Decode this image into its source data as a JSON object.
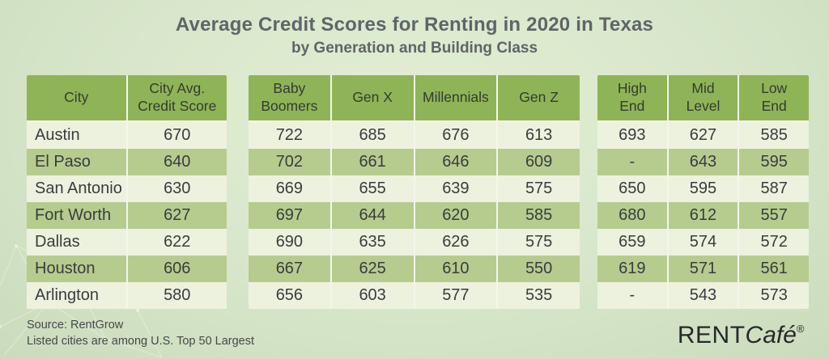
{
  "title": "Average Credit Scores for Renting in 2020 in Texas",
  "subtitle": "by Generation and Building Class",
  "colors": {
    "header_green": "#8fb457",
    "row_light": "#edf2df",
    "row_green": "#b6cc8f",
    "background_center": "#e2eed4",
    "background_edge": "#cadcbd",
    "text_dark": "#393c3e",
    "title_gray": "#616468"
  },
  "tables": {
    "city": {
      "headers": [
        "City",
        "City Avg. Credit Score"
      ],
      "rows": [
        [
          "Austin",
          "670"
        ],
        [
          "El Paso",
          "640"
        ],
        [
          "San Antonio",
          "630"
        ],
        [
          "Fort Worth",
          "627"
        ],
        [
          "Dallas",
          "622"
        ],
        [
          "Houston",
          "606"
        ],
        [
          "Arlington",
          "580"
        ]
      ]
    },
    "generation": {
      "headers": [
        "Baby Boomers",
        "Gen X",
        "Millennials",
        "Gen Z"
      ],
      "rows": [
        [
          "722",
          "685",
          "676",
          "613"
        ],
        [
          "702",
          "661",
          "646",
          "609"
        ],
        [
          "669",
          "655",
          "639",
          "575"
        ],
        [
          "697",
          "644",
          "620",
          "585"
        ],
        [
          "690",
          "635",
          "626",
          "575"
        ],
        [
          "667",
          "625",
          "610",
          "550"
        ],
        [
          "656",
          "603",
          "577",
          "535"
        ]
      ]
    },
    "building_class": {
      "headers": [
        "High End",
        "Mid Level",
        "Low End"
      ],
      "rows": [
        [
          "693",
          "627",
          "585"
        ],
        [
          "-",
          "643",
          "595"
        ],
        [
          "650",
          "595",
          "587"
        ],
        [
          "680",
          "612",
          "557"
        ],
        [
          "659",
          "574",
          "572"
        ],
        [
          "619",
          "571",
          "561"
        ],
        [
          "-",
          "543",
          "573"
        ]
      ]
    }
  },
  "footer": {
    "source": "Source: RentGrow",
    "note": "Listed cities are among U.S. Top 50 Largest",
    "logo": {
      "rent": "RENT",
      "cafe": "Café",
      "registered": "®"
    }
  },
  "chart_data": {
    "type": "table",
    "title": "Average Credit Scores for Renting in 2020 in Texas",
    "subtitle": "by Generation and Building Class",
    "columns": [
      "City",
      "City Avg. Credit Score",
      "Baby Boomers",
      "Gen X",
      "Millennials",
      "Gen Z",
      "High End",
      "Mid Level",
      "Low End"
    ],
    "rows": [
      [
        "Austin",
        670,
        722,
        685,
        676,
        613,
        693,
        627,
        585
      ],
      [
        "El Paso",
        640,
        702,
        661,
        646,
        609,
        "-",
        643,
        595
      ],
      [
        "San Antonio",
        630,
        669,
        655,
        639,
        575,
        650,
        595,
        587
      ],
      [
        "Fort Worth",
        627,
        697,
        644,
        620,
        585,
        680,
        612,
        557
      ],
      [
        "Dallas",
        622,
        690,
        635,
        626,
        575,
        659,
        574,
        572
      ],
      [
        "Houston",
        606,
        667,
        625,
        610,
        550,
        619,
        571,
        561
      ],
      [
        "Arlington",
        580,
        656,
        603,
        577,
        535,
        "-",
        543,
        573
      ]
    ],
    "notes": [
      "Source: RentGrow",
      "Listed cities are among U.S. Top 50 Largest"
    ]
  }
}
